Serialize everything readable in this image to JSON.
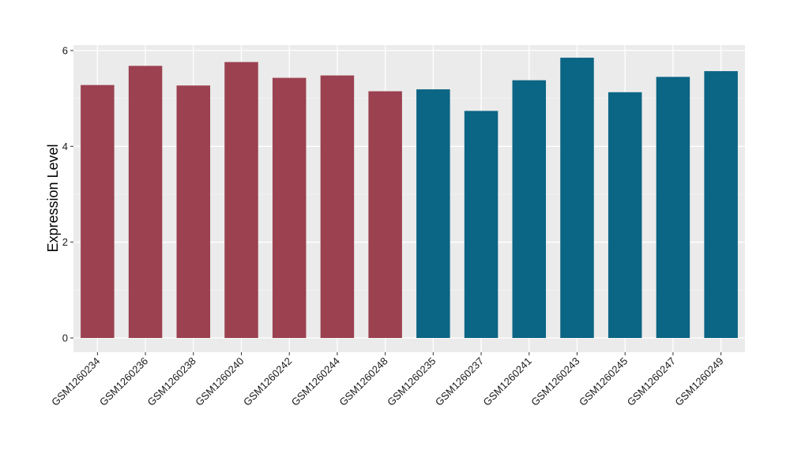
{
  "chart_data": {
    "type": "bar",
    "title": "",
    "xlabel": "",
    "ylabel": "Expression Level",
    "ylim": [
      0,
      6.1
    ],
    "y_ticks": [
      0,
      2,
      4,
      6
    ],
    "grid": true,
    "panel_background": "#ebebeb",
    "categories": [
      "GSM1260234",
      "GSM1260236",
      "GSM1260238",
      "GSM1260240",
      "GSM1260242",
      "GSM1260244",
      "GSM1260248",
      "GSM1260235",
      "GSM1260237",
      "GSM1260241",
      "GSM1260243",
      "GSM1260245",
      "GSM1260247",
      "GSM1260249"
    ],
    "values": [
      5.28,
      5.68,
      5.27,
      5.76,
      5.43,
      5.48,
      5.15,
      5.19,
      4.74,
      5.38,
      5.85,
      5.13,
      5.45,
      5.57
    ],
    "bar_colors": [
      "#9b4150",
      "#9b4150",
      "#9b4150",
      "#9b4150",
      "#9b4150",
      "#9b4150",
      "#9b4150",
      "#0b6584",
      "#0b6584",
      "#0b6584",
      "#0b6584",
      "#0b6584",
      "#0b6584",
      "#0b6584"
    ]
  }
}
